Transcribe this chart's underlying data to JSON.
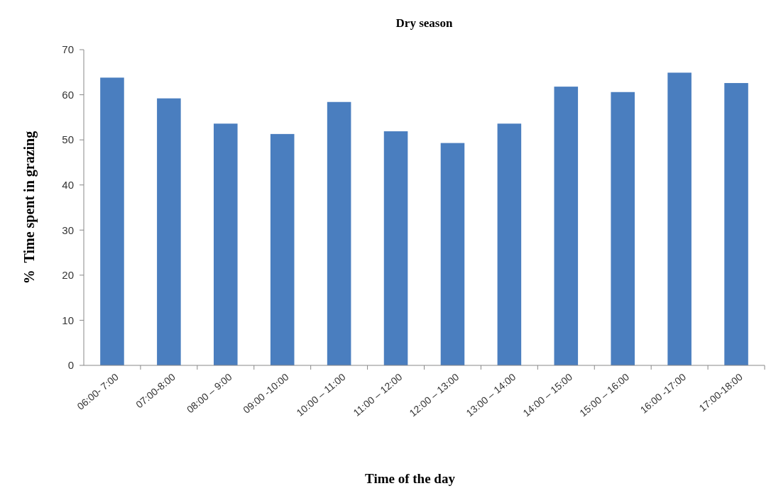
{
  "chart_data": {
    "type": "bar",
    "title": "Dry season",
    "xlabel": "Time of the day",
    "ylabel": "%  Time spent in grazing",
    "categories": [
      "06:00- 7:00",
      "07:00-8:00",
      "08:00 – 9:00",
      "09:00 -10:00",
      "10:00 – 11:00",
      "11:00 – 12:00",
      "12:00 – 13:00",
      "13:00 – 14:00",
      "14:00 – 15:00",
      "15:00 – 16:00",
      "16:00 -17:00",
      "17:00-18:00"
    ],
    "values": [
      63.8,
      59.2,
      53.6,
      51.3,
      58.4,
      51.9,
      49.3,
      53.6,
      61.8,
      60.6,
      64.9,
      62.6
    ],
    "color": "#4a7ebf",
    "ylim": [
      0,
      70
    ],
    "yticks": [
      0,
      10,
      20,
      30,
      40,
      50,
      60,
      70
    ],
    "grid": false
  }
}
